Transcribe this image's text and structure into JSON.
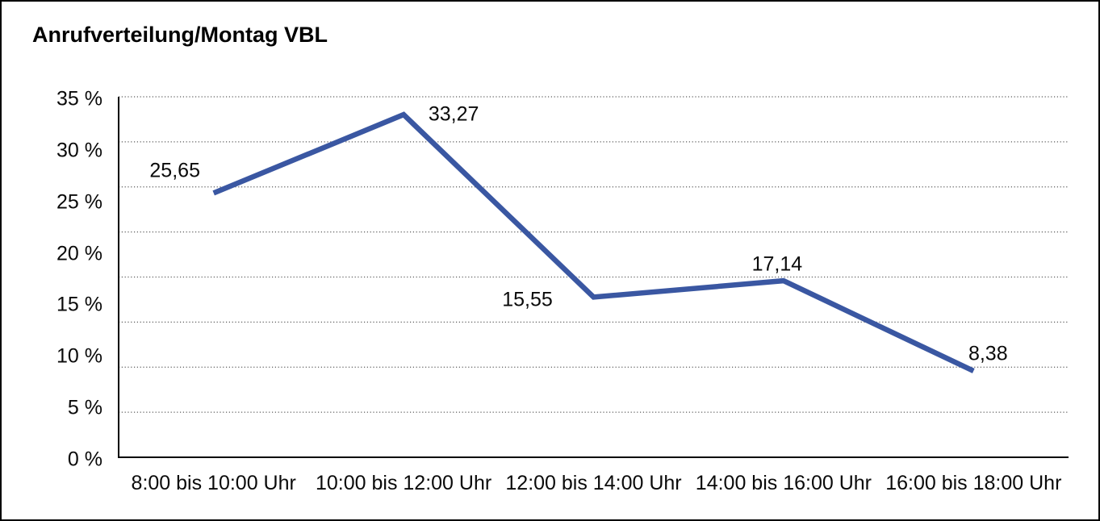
{
  "window": {
    "title": "Anrufverteilung/Montag VBL"
  },
  "chart_data": {
    "type": "line",
    "title": "Anrufverteilung/Montag VBL",
    "categories": [
      "8:00 bis 10:00 Uhr",
      "10:00 bis 12:00 Uhr",
      "12:00 bis 14:00 Uhr",
      "14:00 bis 16:00 Uhr",
      "16:00 bis 18:00 Uhr"
    ],
    "values": [
      25.65,
      33.27,
      15.55,
      17.14,
      8.38
    ],
    "point_labels": [
      "25,65",
      "33,27",
      "15,55",
      "17,14",
      "8,38"
    ],
    "y_tick_values": [
      35,
      30,
      25,
      20,
      15,
      10,
      5,
      0
    ],
    "y_tick_labels": [
      "35 %",
      "30 %",
      "25 %",
      "20 %",
      "15 %",
      "10 %",
      "5 %",
      "0 %"
    ],
    "ylim": [
      0,
      35
    ],
    "xlabel": "",
    "ylabel": "",
    "unit": "%",
    "grid": "horizontal-dotted",
    "gridline_intervals": 8,
    "legend": "none",
    "markers": "none"
  },
  "colors": {
    "line": "#3A57A2",
    "grid": "#5c5c5c",
    "axis": "#000000",
    "text": "#0a0a0a",
    "background": "#ffffff",
    "border": "#000000"
  }
}
